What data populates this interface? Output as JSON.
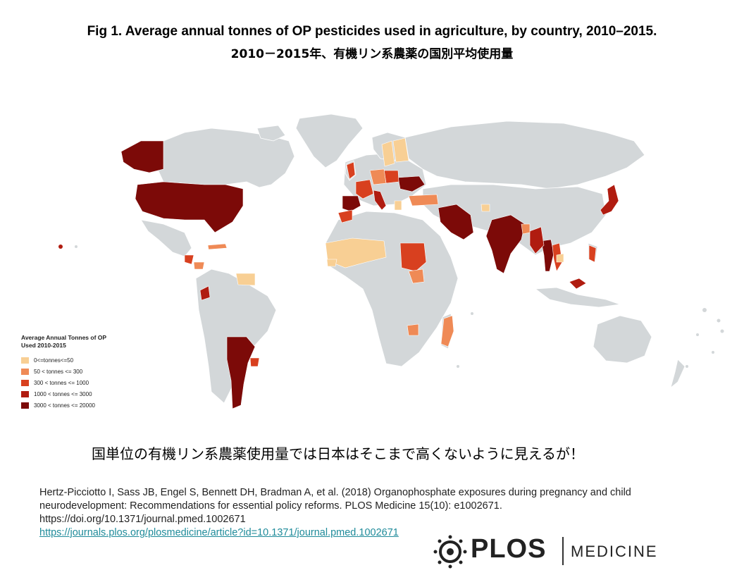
{
  "title": {
    "line1": "Fig 1. Average annual tonnes of OP pesticides used in agriculture, by country, 2010–2015.",
    "line2": "2010－2015年、有機リン系農薬の国別平均使用量"
  },
  "legend": {
    "title": "Average Annual Tonnes of OP\nUsed 2010-2015",
    "items": [
      {
        "label": "0<=tonnes<=50",
        "color": "#f8cf94"
      },
      {
        "label": "50 < tonnes <= 300",
        "color": "#ef8a56"
      },
      {
        "label": "300 < tonnes <= 1000",
        "color": "#d8401f"
      },
      {
        "label": "1000 < tonnes <= 3000",
        "color": "#b01c10"
      },
      {
        "label": "3000 < tonnes <= 20000",
        "color": "#7c0a08"
      }
    ]
  },
  "map_colors": {
    "land": "#d3d7d9",
    "border": "#ffffff"
  },
  "note": "国単位の有機リン系農薬使用量では日本はそこまで高くないように見えるが！",
  "citation": {
    "line1": "Hertz-Picciotto I, Sass JB, Engel S, Bennett DH, Bradman A, et al. (2018) Organophosphate exposures during pregnancy and child",
    "line2": "neurodevelopment: Recommendations for essential policy reforms. PLOS Medicine 15(10): e1002671.",
    "line3": "https://doi.org/10.1371/journal.pmed.1002671",
    "link": "https://journals.plos.org/plosmedicine/article?id=10.1371/journal.pmed.1002671"
  },
  "logo": {
    "name": "PLOS",
    "journal": "MEDICINE"
  }
}
